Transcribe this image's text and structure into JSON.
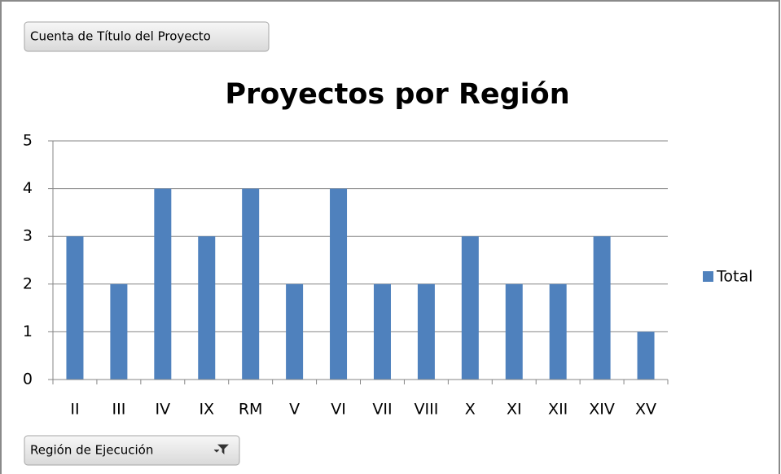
{
  "chart_data": {
    "type": "bar",
    "title": "Proyectos por Región",
    "value_field_button": "Cuenta de Título del Proyecto",
    "axis_field_button": "Región de Ejecución",
    "categories": [
      "II",
      "III",
      "IV",
      "IX",
      "RM",
      "V",
      "VI",
      "VII",
      "VIII",
      "X",
      "XI",
      "XII",
      "XIV",
      "XV"
    ],
    "series": [
      {
        "name": "Total",
        "color": "#4f81bd",
        "values": [
          3,
          2,
          4,
          3,
          4,
          2,
          4,
          2,
          2,
          3,
          2,
          2,
          3,
          1
        ]
      }
    ],
    "ylim": [
      0,
      5
    ],
    "yticks": [
      0,
      1,
      2,
      3,
      4,
      5
    ],
    "grid": true,
    "legend": "right"
  }
}
